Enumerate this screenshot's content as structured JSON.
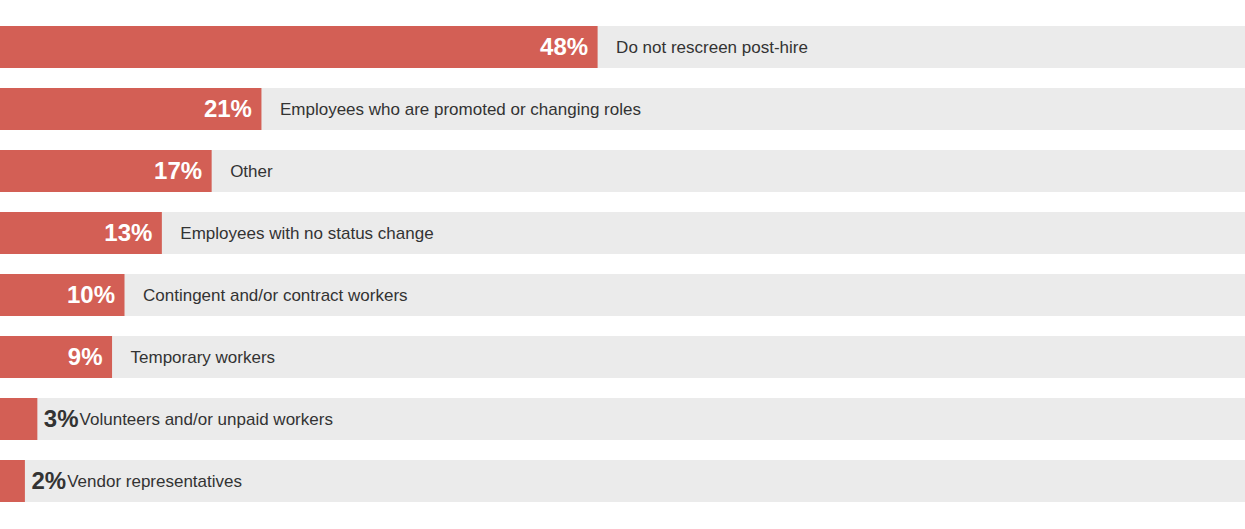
{
  "chart_data": {
    "type": "bar",
    "orientation": "horizontal",
    "categories": [
      "Do not rescreen post-hire",
      "Employees who are promoted or changing roles",
      "Other",
      "Employees with no status change",
      "Contingent and/or contract workers",
      "Temporary workers",
      "Volunteers and/or unpaid workers",
      "Vendor representatives"
    ],
    "values": [
      48,
      21,
      17,
      13,
      10,
      9,
      3,
      2
    ],
    "value_labels": [
      "48%",
      "21%",
      "17%",
      "13%",
      "10%",
      "9%",
      "3%",
      "2%"
    ],
    "data_labels": true,
    "color": "#d35f55",
    "xlim": [
      0,
      100
    ],
    "tick_labels": false,
    "grid": false
  }
}
